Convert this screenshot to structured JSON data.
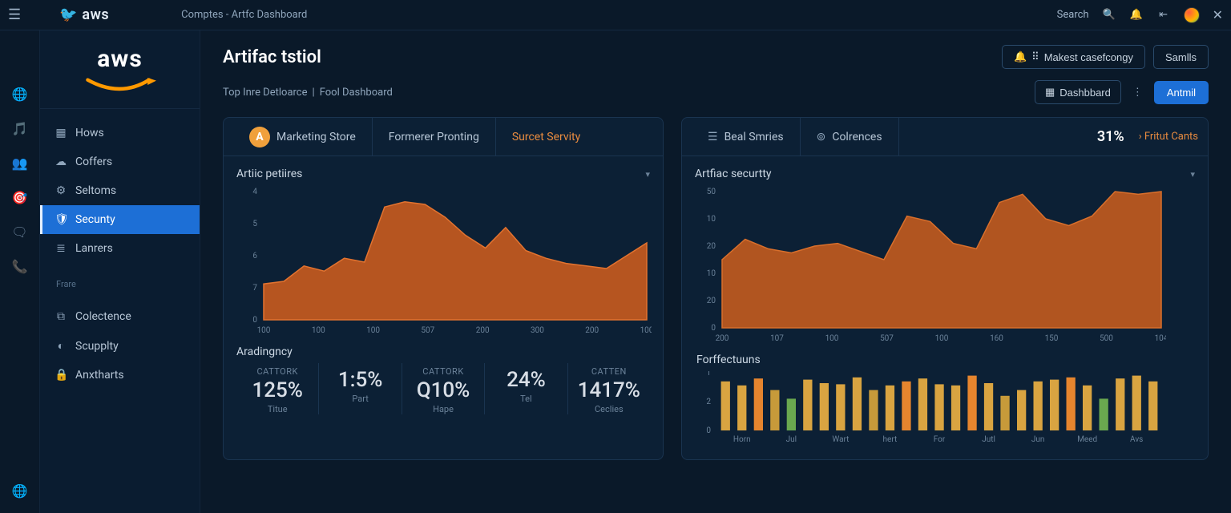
{
  "topbar": {
    "brand": "aws",
    "title": "Comptes - Artfc Dashboard",
    "search_label": "Search"
  },
  "sidebar": {
    "brand": "aws",
    "items": [
      {
        "icon": "▦",
        "label": "Hows"
      },
      {
        "icon": "☁",
        "label": "Coffers"
      },
      {
        "icon": "⚙",
        "label": "Seltoms"
      },
      {
        "icon": "🛡",
        "label": "Secunty",
        "active": true
      },
      {
        "icon": "≣",
        "label": "Lanrers"
      }
    ],
    "section_label": "Frare",
    "items2": [
      {
        "icon": "⧉",
        "label": "Colectence"
      },
      {
        "icon": "◐",
        "label": "Scupplty"
      },
      {
        "icon": "🔒",
        "label": "Anxtharts"
      }
    ]
  },
  "header": {
    "title": "Artifac tstiol",
    "btn_make": "Makest casefcongy",
    "btn_samlls": "Samlls",
    "crumb1": "Top Inre Detloarce",
    "crumb2": "Fool Dashboard",
    "btn_dashboard": "Dashbbard",
    "btn_primary": "Antmil"
  },
  "panel_left": {
    "tabs": [
      {
        "label": "Marketing Store"
      },
      {
        "label": "Formerer Pronting"
      },
      {
        "label": "Surcet Servity",
        "active": true
      }
    ],
    "chart": {
      "title": "Artiic petiires",
      "type": "area",
      "y_ticks": [
        "4",
        "5",
        "6",
        "7",
        "0"
      ],
      "x_ticks": [
        "100",
        "100",
        "100",
        "507",
        "200",
        "300",
        "200",
        "100"
      ],
      "values": [
        0.28,
        0.3,
        0.42,
        0.38,
        0.48,
        0.45,
        0.88,
        0.92,
        0.9,
        0.8,
        0.66,
        0.56,
        0.72,
        0.54,
        0.48,
        0.44,
        0.42,
        0.4,
        0.5,
        0.6
      ],
      "fill_color": "#c65a1e",
      "stroke_color": "#e3732f"
    },
    "metrics": {
      "title": "Aradingncy",
      "items": [
        {
          "cap": "CATTORK",
          "big": "125%",
          "sub": "Titue"
        },
        {
          "cap": "",
          "big": "1:5%",
          "sub": "Part"
        },
        {
          "cap": "CATTORK",
          "big": "Q10%",
          "sub": "Hape"
        },
        {
          "cap": "",
          "big": "24%",
          "sub": "Tel"
        },
        {
          "cap": "CATTEN",
          "big": "1417%",
          "sub": "Ceclies"
        }
      ]
    }
  },
  "panel_right": {
    "tabs": {
      "t1": "Beal Smries",
      "t2": "Colrences",
      "stat": "31%",
      "link": "› Fritut Cants"
    },
    "chart": {
      "title": "Artfiac securtty",
      "type": "area",
      "y_ticks": [
        "50",
        "10",
        "20",
        "10",
        "20",
        "0"
      ],
      "x_ticks": [
        "200",
        "107",
        "100",
        "507",
        "100",
        "160",
        "150",
        "500",
        "104"
      ],
      "values": [
        0.5,
        0.65,
        0.58,
        0.55,
        0.6,
        0.62,
        0.56,
        0.5,
        0.82,
        0.78,
        0.62,
        0.58,
        0.92,
        0.98,
        0.8,
        0.75,
        0.82,
        1.0,
        0.98,
        1.0
      ],
      "fill_color": "#c05a1e",
      "stroke_color": "#d96f2b"
    },
    "bars": {
      "title": "Forffectuuns",
      "y_ticks": [
        "1",
        "2",
        "0"
      ],
      "x_labels": [
        "Horn",
        "Jul",
        "Wart",
        "hert",
        "For",
        "Jutl",
        "Jun",
        "Meed",
        "Avs"
      ],
      "values": [
        0.85,
        0.78,
        0.9,
        0.7,
        0.55,
        0.88,
        0.82,
        0.8,
        0.92,
        0.7,
        0.78,
        0.85,
        0.9,
        0.8,
        0.78,
        0.95,
        0.82,
        0.6,
        0.7,
        0.85,
        0.88,
        0.92,
        0.78,
        0.55,
        0.9,
        0.95,
        0.85
      ],
      "colors": [
        "#d9a441",
        "#d9a441",
        "#e6852e",
        "#c79a3a",
        "#6aa84f",
        "#d9a441",
        "#d9a441",
        "#d9a441",
        "#d9a441",
        "#c79a3a",
        "#d9a441",
        "#e6852e",
        "#d9a441",
        "#d9a441",
        "#d9a441",
        "#e6852e",
        "#d9a441",
        "#c79a3a",
        "#d9a441",
        "#d9a441",
        "#d9a441",
        "#e6852e",
        "#d9a441",
        "#6aa84f",
        "#d9a441",
        "#d9a441",
        "#d9a441"
      ]
    }
  }
}
